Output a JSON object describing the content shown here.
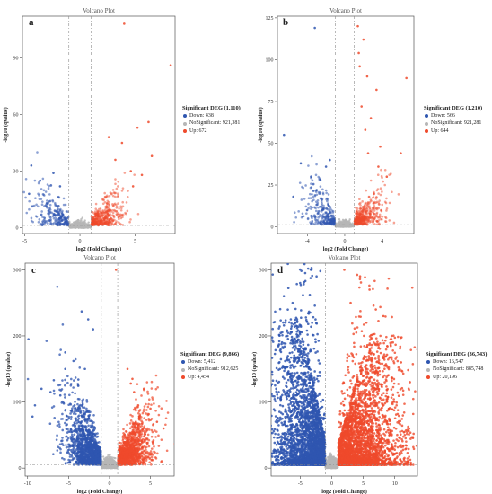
{
  "colors": {
    "down": "#2f56b0",
    "nosig": "#b6b6b6",
    "up": "#ef4a2c"
  },
  "chart_data": [
    {
      "type": "scatter",
      "panel_label": "a",
      "title": "Volcano Plot",
      "xlabel": "log2 (Fold Change)",
      "ylabel": "-log10 (qvalue)",
      "xlim": [
        -5.2,
        8.6
      ],
      "ylim": [
        -3,
        112
      ],
      "xticks": [
        -5,
        0,
        5
      ],
      "yticks": [
        0,
        30,
        60,
        90
      ],
      "vlines": [
        -1,
        1
      ],
      "hline": 1.3,
      "legend": {
        "title": "Significant DEG (1,110)",
        "items": [
          {
            "key": "down",
            "label": "Down: 438"
          },
          {
            "key": "nosig",
            "label": "NoSignificant: 921,381"
          },
          {
            "key": "up",
            "label": "Up: 672"
          }
        ]
      },
      "sig_height": [
        24,
        20
      ],
      "sig_alpha": [
        0.55,
        0.5
      ],
      "ns_spread": 1.35,
      "n": [
        250,
        320,
        420
      ],
      "outliers": {
        "up": [
          [
            4,
            108
          ],
          [
            8.2,
            86
          ],
          [
            5.2,
            53
          ],
          [
            6.2,
            56
          ],
          [
            3.8,
            45
          ],
          [
            6.5,
            38
          ],
          [
            4.6,
            30
          ],
          [
            3.2,
            36
          ],
          [
            4.8,
            22
          ],
          [
            5.6,
            28
          ],
          [
            2.6,
            48
          ]
        ],
        "down": [
          [
            -4.4,
            33
          ],
          [
            -3.6,
            25
          ],
          [
            -2.4,
            29
          ],
          [
            -1.8,
            22
          ],
          [
            -3.0,
            13
          ],
          [
            -4.6,
            18
          ]
        ]
      }
    },
    {
      "type": "scatter",
      "panel_label": "b",
      "title": "Volcano Plot",
      "xlabel": "log2 (Fold Change)",
      "ylabel": "-log10 (qvalue)",
      "xlim": [
        -7.2,
        7.4
      ],
      "ylim": [
        -4,
        126
      ],
      "xticks": [
        -4,
        0,
        4
      ],
      "yticks": [
        0,
        25,
        50,
        75,
        100,
        125
      ],
      "vlines": [
        -1,
        1
      ],
      "hline": 1.3,
      "legend": {
        "title": "Significant DEG (1,210)",
        "items": [
          {
            "key": "down",
            "label": "Down: 566"
          },
          {
            "key": "nosig",
            "label": "NoSignificant: 921,281"
          },
          {
            "key": "up",
            "label": "Up: 644"
          }
        ]
      },
      "sig_height": [
        26,
        22
      ],
      "sig_alpha": [
        0.55,
        0.5
      ],
      "ns_spread": 1.35,
      "n": [
        280,
        320,
        420
      ],
      "outliers": {
        "up": [
          [
            1.4,
            120
          ],
          [
            2.0,
            112
          ],
          [
            1.5,
            104
          ],
          [
            1.6,
            96
          ],
          [
            2.4,
            90
          ],
          [
            6.6,
            89
          ],
          [
            2.8,
            65
          ],
          [
            3.4,
            82
          ],
          [
            1.8,
            72
          ],
          [
            2.2,
            58
          ],
          [
            3.8,
            48
          ],
          [
            6.0,
            44
          ],
          [
            4.5,
            30
          ],
          [
            2.5,
            44
          ],
          [
            3.6,
            36
          ]
        ],
        "down": [
          [
            -3.2,
            119
          ],
          [
            -4.7,
            38
          ],
          [
            -3.6,
            30
          ],
          [
            -6.5,
            55
          ],
          [
            -2.6,
            28
          ],
          [
            -2.0,
            36
          ],
          [
            -1.6,
            40
          ],
          [
            -5.5,
            18
          ],
          [
            -3.0,
            22
          ]
        ]
      }
    },
    {
      "type": "scatter",
      "panel_label": "c",
      "title": "Volcano Plot",
      "xlabel": "log2 (Fold Change)",
      "ylabel": "-log10 (qvalue)",
      "xlim": [
        -10.3,
        7.9
      ],
      "ylim": [
        -12,
        310
      ],
      "xticks": [
        -10,
        -5,
        0,
        5
      ],
      "yticks": [
        0,
        100,
        200,
        300
      ],
      "vlines": [
        -1,
        1
      ],
      "hline": 5,
      "legend": {
        "title": "Significant DEG (9,866)",
        "items": [
          {
            "key": "down",
            "label": "Down: 5,412"
          },
          {
            "key": "nosig",
            "label": "NoSignificant: 912,625"
          },
          {
            "key": "up",
            "label": "Up: 4,454"
          }
        ]
      },
      "sig_height": [
        85,
        70
      ],
      "sig_alpha": [
        0.75,
        0.7
      ],
      "ns_spread": 1.2,
      "n": [
        1400,
        700,
        1300
      ],
      "outliers": {
        "up": [
          [
            0.8,
            300
          ],
          [
            2.2,
            150
          ],
          [
            3.0,
            115
          ],
          [
            2.6,
            128
          ],
          [
            3.5,
            95
          ],
          [
            5.0,
            90
          ],
          [
            4.2,
            120
          ],
          [
            2.8,
            135
          ],
          [
            5.8,
            70
          ],
          [
            6.6,
            60
          ]
        ],
        "down": [
          [
            -3.4,
            237
          ],
          [
            -2.6,
            225
          ],
          [
            -2.0,
            210
          ],
          [
            -5.4,
            175
          ],
          [
            -4.4,
            162
          ],
          [
            -5.4,
            150
          ],
          [
            -3.8,
            134
          ],
          [
            -6.8,
            133
          ],
          [
            -7.2,
            115
          ],
          [
            -9.9,
            195
          ],
          [
            -9.1,
            95
          ],
          [
            -9.4,
            78
          ],
          [
            -8.3,
            120
          ],
          [
            -6.0,
            110
          ],
          [
            -3.0,
            150
          ]
        ]
      }
    },
    {
      "type": "scatter",
      "panel_label": "d",
      "title": "Volcano Plot",
      "xlabel": "log2 (Fold Change)",
      "ylabel": "-log10 (qvalue)",
      "xlim": [
        -9.6,
        13.6
      ],
      "ylim": [
        -12,
        310
      ],
      "xticks": [
        -5,
        0,
        5,
        10
      ],
      "yticks": [
        0,
        100,
        200,
        300
      ],
      "vlines": [
        -1,
        1
      ],
      "hline": 5,
      "legend": {
        "title": "Significant DEG (36,743)",
        "items": [
          {
            "key": "down",
            "label": "Down: 16,547"
          },
          {
            "key": "nosig",
            "label": "NoSignificant: 885,748"
          },
          {
            "key": "up",
            "label": "Up: 20,196"
          }
        ]
      },
      "sig_height": [
        130,
        110
      ],
      "sig_alpha": [
        0.85,
        0.8
      ],
      "ns_spread": 1.2,
      "n": [
        3200,
        800,
        3400
      ],
      "dense_down": true,
      "outliers": {
        "up": [
          [
            2.0,
            300
          ],
          [
            4.5,
            290
          ],
          [
            6.0,
            270
          ],
          [
            8.2,
            230
          ],
          [
            9.5,
            200
          ],
          [
            3.0,
            250
          ],
          [
            5.5,
            220
          ],
          [
            7.0,
            240
          ],
          [
            11.0,
            160
          ],
          [
            12.4,
            130
          ]
        ],
        "down": [
          [
            -3.2,
            300
          ],
          [
            -2.4,
            290
          ],
          [
            -4.2,
            295
          ],
          [
            -5.0,
            280
          ],
          [
            -1.8,
            298
          ],
          [
            -6.2,
            250
          ],
          [
            -7.0,
            200
          ],
          [
            -8.2,
            150
          ],
          [
            -8.8,
            120
          ]
        ]
      }
    }
  ]
}
